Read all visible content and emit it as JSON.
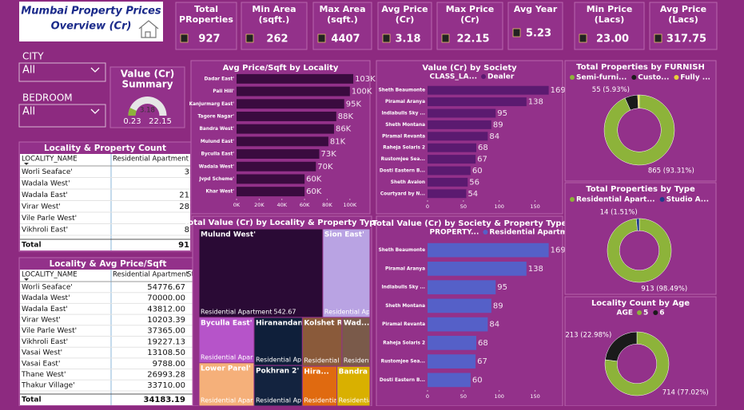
{
  "header": {
    "title": [
      "Mumbai Property Prices",
      "Overview (Cr)"
    ]
  },
  "kpis": [
    {
      "label": [
        "Total",
        "PRoperties"
      ],
      "value": 927
    },
    {
      "label": [
        "Min Area",
        "(sqft.)"
      ],
      "value": 262
    },
    {
      "label": [
        "Max Area",
        "(sqft.)"
      ],
      "value": 4407
    },
    {
      "label": [
        "Avg Price",
        "(Cr)"
      ],
      "value": 3.18
    },
    {
      "label": [
        "Max Price",
        "(Cr)"
      ],
      "value": 22.15
    },
    {
      "label": [
        "Avg Year"
      ],
      "value": 5.23
    },
    {
      "label": [
        "Min Price",
        "(Lacs)"
      ],
      "value": "23.00"
    },
    {
      "label": [
        "Avg Price",
        "(Lacs)"
      ],
      "value": 317.75
    }
  ],
  "slicers": [
    {
      "label": "CITY",
      "value": "All"
    },
    {
      "label": "BEDROOM",
      "value": "All"
    }
  ],
  "tables": [
    {
      "title": "Locality & Property Count",
      "columns": [
        "LOCALITY_NAME",
        "Residential Apartment"
      ],
      "rows": [
        [
          "Worli Seaface'",
          "3"
        ],
        [
          "Wadala West'"
        ],
        [
          "Wadala East'",
          "21"
        ],
        [
          "Virar West'",
          "28"
        ],
        [
          "Vile Parle West'"
        ],
        [
          "Vikhroli East'",
          "8"
        ]
      ],
      "total": [
        "Total",
        "91"
      ]
    },
    {
      "title": "Locality & Avg Price/Sqft",
      "columns": [
        "LOCALITY_NAME",
        "Residential Apartment",
        "St"
      ],
      "rows": [
        [
          "Worli Seaface'",
          "54776.67"
        ],
        [
          "Wadala West'",
          "70000.00"
        ],
        [
          "Wadala East'",
          "43812.00"
        ],
        [
          "Virar West'",
          "10203.39"
        ],
        [
          "Vile Parle West'",
          "37365.00"
        ],
        [
          "Vikhroli East'",
          "19227.13"
        ],
        [
          "Vasai West'",
          "13108.50"
        ],
        [
          "Vasai East'",
          "9788.00"
        ],
        [
          "Thane West'",
          "26993.28"
        ],
        [
          "Thakur Village'",
          "33710.00"
        ]
      ],
      "total": [
        "Total",
        "34183.19"
      ]
    }
  ],
  "chart_data": [
    {
      "type": "gauge",
      "title": [
        "Value (Cr)",
        "Summary"
      ],
      "value": 3.18,
      "min": 0.23,
      "max": 22.15,
      "color": "#8db33a",
      "track_color": "#e6e6e6"
    },
    {
      "type": "hbar",
      "title": "Avg Price/Sqft by Locality",
      "categories": [
        "Dadar East'",
        "Pali Hill'",
        "Kanjurmarg East'",
        "Tagore Nagar'",
        "Bandra West'",
        "Mulund East'",
        "Byculla East'",
        "Wadala West'",
        "Jvpd Scheme'",
        "Khar West'"
      ],
      "values": [
        103000,
        100000,
        95000,
        88000,
        86000,
        81000,
        73000,
        70000,
        60000,
        60000
      ],
      "value_labels": [
        "103K",
        "100K",
        "95K",
        "88K",
        "86K",
        "81K",
        "73K",
        "70K",
        "60K",
        "60K"
      ],
      "color": "#3a0b3f",
      "xlim": [
        0,
        110000
      ],
      "xticks": [
        {
          "value": 0,
          "label": "0K"
        },
        {
          "value": 20000,
          "label": "20K"
        },
        {
          "value": 40000,
          "label": "40K"
        },
        {
          "value": 60000,
          "label": "60K"
        },
        {
          "value": 80000,
          "label": "80K"
        },
        {
          "value": 100000,
          "label": "100K"
        }
      ]
    },
    {
      "type": "treemap",
      "title": "Total Value (Cr) by Locality & Property Type",
      "subcategory": "Residential Apartment",
      "categories": [
        "Mulund West'",
        "Sion East'",
        "Byculla East'",
        "Lower Parel'",
        "Hiranandani ...",
        "Pokhran 2'",
        "Kolshet Ro...",
        "Wad...",
        "Hira...",
        "Bandra East'"
      ],
      "values": [
        542.67,
        207,
        124,
        118,
        115,
        97,
        96,
        68,
        68,
        65
      ],
      "colors": [
        "#2a0a35",
        "#b9a3e3",
        "#b654c9",
        "#f5b07a",
        "#0f1f3a",
        "#13233f",
        "#8a5a3a",
        "#7a5a4a",
        "#e06a10",
        "#d9b000"
      ]
    },
    {
      "type": "hbar",
      "title": "Value (Cr) by Society",
      "legend_title": "CLASS_LA...",
      "categories": [
        "Sheth Beaumonte",
        "Piramal Aranya",
        "Indiabulls Sky ...",
        "Sheth Montana",
        "Piramal Revanta",
        "Raheja Solaris 2",
        "Rustomjee Sea...",
        "Dosti Eastern B...",
        "Sheth Avalon",
        "Courtyard by N..."
      ],
      "series": [
        {
          "name": "Dealer",
          "color": "#5b1a70",
          "values": [
            169,
            138,
            95,
            89,
            84,
            68,
            67,
            60,
            56,
            54
          ]
        }
      ],
      "xlim": [
        0,
        175
      ],
      "xticks": [
        0,
        50,
        100,
        150
      ]
    },
    {
      "type": "hbar",
      "title": "Total Value (Cr) by Society & Property Type",
      "legend_title": "PROPERTY...",
      "categories": [
        "Sheth Beaumonte",
        "Piramal Aranya",
        "Indiabulls Sky ...",
        "Sheth Montana",
        "Piramal Revanta",
        "Raheja Solaris 2",
        "Rustomjee Sea...",
        "Dosti Eastern B..."
      ],
      "series": [
        {
          "name": "Residential Apartment",
          "color": "#5560c8",
          "values": [
            169,
            138,
            95,
            89,
            84,
            68,
            67,
            60
          ]
        }
      ],
      "xlim": [
        0,
        175
      ],
      "xticks": [
        0,
        50,
        100,
        150
      ]
    },
    {
      "type": "donut",
      "title": "Total Properties by FURNISH",
      "categories": [
        "Semi-furni...",
        "Custo...",
        "Fully ..."
      ],
      "values": [
        865,
        55,
        7
      ],
      "value_labels": [
        "865 (93.31%)",
        "55 (5.93%)",
        null
      ],
      "colors": [
        "#8db33a",
        "#1a1a1a",
        "#e8d23a"
      ]
    },
    {
      "type": "donut",
      "title": "Total Properties by Type",
      "categories": [
        "Residential Apart...",
        "Studio A..."
      ],
      "values": [
        913,
        14
      ],
      "value_labels": [
        "913 (98.49%)",
        "14 (1.51%)"
      ],
      "colors": [
        "#8db33a",
        "#1f3a8a"
      ]
    },
    {
      "type": "donut",
      "title": "Locality Count by Age",
      "legend_title": "AGE",
      "categories": [
        "5",
        "6"
      ],
      "values": [
        714,
        213
      ],
      "value_labels": [
        "714 (77.02%)",
        "213 (22.98%)"
      ],
      "colors": [
        "#8db33a",
        "#1a1a1a"
      ]
    }
  ]
}
